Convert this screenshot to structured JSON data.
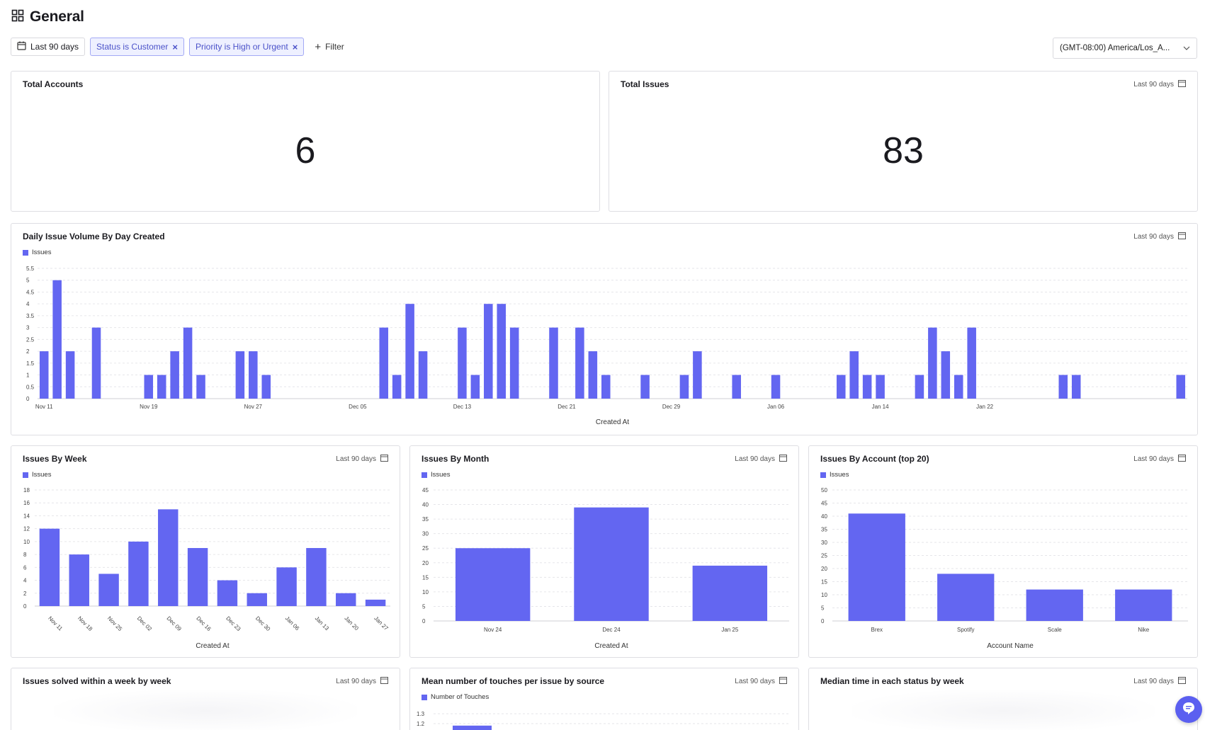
{
  "page": {
    "title": "General"
  },
  "filters": {
    "date_range": "Last 90 days",
    "chips": [
      "Status is Customer",
      "Priority is High or Urgent"
    ],
    "add_filter": "Filter",
    "timezone": "(GMT-08:00) America/Los_A..."
  },
  "colors": {
    "accent": "#6366f1",
    "chip_bg": "#eef0ff"
  },
  "cards": {
    "total_accounts": {
      "title": "Total Accounts",
      "value": "6"
    },
    "total_issues": {
      "title": "Total Issues",
      "range": "Last 90 days",
      "value": "83"
    },
    "daily": {
      "title": "Daily Issue Volume By Day Created",
      "range": "Last 90 days",
      "legend": "Issues"
    },
    "weekly": {
      "title": "Issues By Week",
      "range": "Last 90 days",
      "legend": "Issues"
    },
    "monthly": {
      "title": "Issues By Month",
      "range": "Last 90 days",
      "legend": "Issues"
    },
    "account": {
      "title": "Issues By Account (top 20)",
      "range": "Last 90 days",
      "legend": "Issues"
    },
    "solved": {
      "title": "Issues solved within a week by week",
      "range": "Last 90 days"
    },
    "touches": {
      "title": "Mean number of touches per issue by source",
      "range": "Last 90 days",
      "legend": "Number of Touches"
    },
    "median": {
      "title": "Median time in each status by week",
      "range": "Last 90 days"
    }
  },
  "chart_data": [
    {
      "id": "daily",
      "type": "bar",
      "title": "Daily Issue Volume By Day Created",
      "xlabel": "Created At",
      "ylabel": "",
      "series_name": "Issues",
      "ylim": [
        0,
        5.5
      ],
      "yticks": [
        "0",
        "0.5",
        "1",
        "1.5",
        "2",
        "2.5",
        "3",
        "3.5",
        "4",
        "4.5",
        "5",
        "5.5"
      ],
      "xticks": [
        "Nov 11",
        "Nov 19",
        "Nov 27",
        "Dec 05",
        "Dec 13",
        "Dec 21",
        "Dec 29",
        "Jan 06",
        "Jan 14",
        "Jan 22"
      ],
      "values": [
        2,
        5,
        2,
        0,
        3,
        0,
        0,
        0,
        1,
        1,
        2,
        3,
        1,
        0,
        0,
        2,
        2,
        1,
        0,
        0,
        0,
        0,
        0,
        0,
        0,
        0,
        3,
        1,
        4,
        2,
        0,
        0,
        3,
        1,
        4,
        4,
        3,
        0,
        0,
        3,
        0,
        3,
        2,
        1,
        0,
        0,
        1,
        0,
        0,
        1,
        2,
        0,
        0,
        1,
        0,
        0,
        1,
        0,
        0,
        0,
        0,
        1,
        2,
        1,
        1,
        0,
        0,
        1,
        3,
        2,
        1,
        3,
        0,
        0,
        0,
        0,
        0,
        0,
        1,
        1,
        0,
        0,
        0,
        0,
        0,
        0,
        0,
        1
      ]
    },
    {
      "id": "weekly",
      "type": "bar",
      "title": "Issues By Week",
      "xlabel": "Created At",
      "series_name": "Issues",
      "ylim": [
        0,
        18
      ],
      "yticks": [
        "0",
        "2",
        "4",
        "6",
        "8",
        "10",
        "12",
        "14",
        "16",
        "18"
      ],
      "categories": [
        "Nov 11",
        "Nov 18",
        "Nov 25",
        "Dec 02",
        "Dec 09",
        "Dec 16",
        "Dec 23",
        "Dec 30",
        "Jan 06",
        "Jan 13",
        "Jan 20",
        "Jan 27"
      ],
      "values": [
        12,
        8,
        5,
        10,
        15,
        9,
        4,
        2,
        6,
        9,
        2,
        1
      ]
    },
    {
      "id": "monthly",
      "type": "bar",
      "title": "Issues By Month",
      "xlabel": "Created At",
      "series_name": "Issues",
      "ylim": [
        0,
        45
      ],
      "yticks": [
        "0",
        "5",
        "10",
        "15",
        "20",
        "25",
        "30",
        "35",
        "40",
        "45"
      ],
      "categories": [
        "Nov 24",
        "Dec 24",
        "Jan 25"
      ],
      "values": [
        25,
        39,
        19
      ]
    },
    {
      "id": "account",
      "type": "bar",
      "title": "Issues By Account (top 20)",
      "xlabel": "Account Name",
      "series_name": "Issues",
      "ylim": [
        0,
        50
      ],
      "yticks": [
        "0",
        "5",
        "10",
        "15",
        "20",
        "25",
        "30",
        "35",
        "40",
        "45",
        "50"
      ],
      "categories": [
        "Brex",
        "Spotify",
        "Scale",
        "Nike"
      ],
      "values": [
        41,
        18,
        12,
        12
      ]
    },
    {
      "id": "touches",
      "type": "bar",
      "title": "Mean number of touches per issue by source",
      "series_name": "Number of Touches",
      "yticks": [
        "1.2",
        "1.3"
      ],
      "values": [
        1.18
      ]
    }
  ]
}
